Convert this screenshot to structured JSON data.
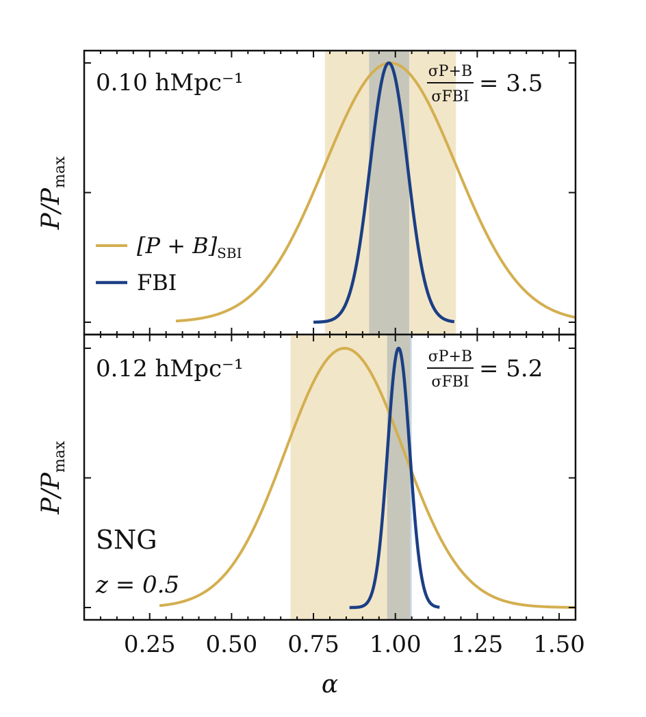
{
  "colors": {
    "sbi": "#D4AF50",
    "fbi": "#1B3F85",
    "sbi_band": "#F2E6C8",
    "fbi_band": "#C9D9EA",
    "overlap_band": "#C6C7BA",
    "axis": "#111111"
  },
  "chart_data": {
    "type": "line",
    "xlabel": "α",
    "xlim": [
      0.05,
      1.55
    ],
    "xticks": [
      0.25,
      0.5,
      0.75,
      1.0,
      1.25,
      1.5
    ],
    "xtick_labels": [
      "0.25",
      "0.50",
      "0.75",
      "1.00",
      "1.25",
      "1.50"
    ],
    "legend": [
      {
        "key": "sbi",
        "label_main": "[P + B]",
        "label_sub": "SBI"
      },
      {
        "key": "fbi",
        "label_main": "FBI",
        "label_sub": ""
      }
    ],
    "panels": [
      {
        "scale_label": "0.10 hMpc⁻¹",
        "ylabel_main": "P/P",
        "ylabel_sub": "max",
        "ylim": [
          0,
          1
        ],
        "ratio_num": "σP+B",
        "ratio_den": "σFBI",
        "ratio_value": "= 3.5",
        "sbi": {
          "mean": 0.985,
          "sigma": 0.2,
          "x_range": [
            0.33,
            1.55
          ],
          "band": [
            0.785,
            1.185
          ]
        },
        "fbi": {
          "mean": 0.98,
          "sigma": 0.057,
          "x_range": [
            0.75,
            1.18
          ],
          "band": [
            0.92,
            1.042
          ]
        }
      },
      {
        "scale_label": "0.12 hMpc⁻¹",
        "ylabel_main": "P/P",
        "ylabel_sub": "max",
        "ylim": [
          0,
          1
        ],
        "ratio_num": "σP+B",
        "ratio_den": "σFBI",
        "ratio_value": "= 5.2",
        "sbi": {
          "mean": 0.845,
          "sigma": 0.18,
          "x_range": [
            0.28,
            1.55
          ],
          "band": [
            0.68,
            1.045
          ]
        },
        "fbi": {
          "mean": 1.01,
          "sigma": 0.034,
          "x_range": [
            0.86,
            1.135
          ],
          "band": [
            0.975,
            1.05
          ]
        },
        "annotation_title": "SNG",
        "annotation_z": "z = 0.5"
      }
    ]
  }
}
